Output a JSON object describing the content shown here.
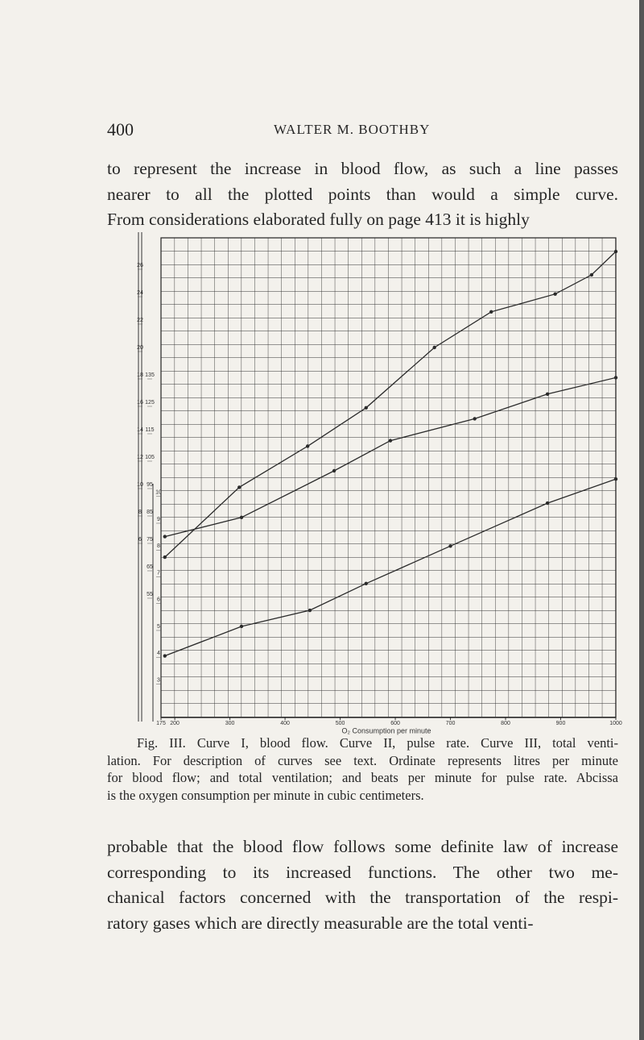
{
  "header": {
    "page_number": "400",
    "running_head": "WALTER M. BOOTHBY"
  },
  "paragraph_1": [
    "to represent the increase in blood flow, as such a line passes",
    "nearer to all the plotted points than would a simple curve.",
    "From considerations elaborated fully on page 413 it is highly"
  ],
  "chart_data": {
    "type": "line",
    "xlabel": "O₂ Consumption per minute",
    "xlim": [
      175,
      1000
    ],
    "xticks": [
      175,
      200,
      300,
      400,
      500,
      600,
      700,
      800,
      900,
      1000
    ],
    "ylim": [
      -7,
      28
    ],
    "yticks": [
      6,
      8,
      10,
      12,
      14,
      16,
      18,
      20,
      22,
      24,
      26
    ],
    "y2lim": [
      10,
      185
    ],
    "y2ticks": [
      55,
      65,
      75,
      85,
      95,
      105,
      115,
      125,
      135
    ],
    "y3lim": [
      1.6,
      19.5
    ],
    "y3ticks": [
      3,
      4,
      5,
      6,
      7,
      8,
      9,
      10
    ],
    "series": [
      {
        "axis": "y3",
        "color": "#2b2b2b",
        "x": [
          182,
          321,
          445,
          547,
          700,
          876,
          1000
        ],
        "values": [
          3.9,
          5.0,
          5.6,
          6.6,
          8.0,
          9.6,
          10.5
        ]
      },
      {
        "axis": "y2",
        "color": "#2b2b2b",
        "x": [
          182,
          321,
          489,
          591,
          744,
          876,
          1000
        ],
        "values": [
          76,
          83,
          100,
          111,
          119,
          128,
          134
        ]
      },
      {
        "axis": "y",
        "color": "#2b2b2b",
        "x": [
          182,
          317,
          441,
          547,
          671,
          774,
          890,
          956,
          1000
        ],
        "values": [
          4.7,
          9.8,
          12.8,
          15.6,
          20.0,
          22.6,
          23.9,
          25.3,
          27.0
        ]
      }
    ]
  },
  "caption": [
    "Fig. III. Curve I, blood flow. Curve II, pulse rate. Curve III, total venti-",
    "lation. For description of curves see text. Ordinate represents litres per minute",
    "for blood flow; and total ventilation; and beats per minute for pulse rate. Abcissa",
    "is the oxygen consumption per minute in cubic centimeters."
  ],
  "paragraph_2": [
    "probable that the blood flow follows some definite law of increase",
    "corresponding to its increased functions. The other two me-",
    "chanical factors concerned with the transportation of the respi-",
    "ratory gases which are directly measurable are the total venti-"
  ]
}
